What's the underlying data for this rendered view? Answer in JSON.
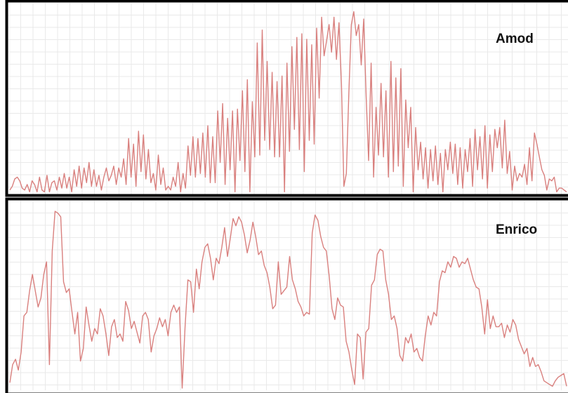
{
  "colors": {
    "line": "#d9807e",
    "grid": "#e9e9e9",
    "frame": "#000000",
    "background": "#ffffff"
  },
  "chart_data": [
    {
      "type": "line",
      "name": "Amod",
      "grid": true,
      "ylim": [
        0,
        100
      ],
      "values": [
        2,
        4,
        8,
        9,
        7,
        3,
        2,
        5,
        1,
        7,
        5,
        1,
        9,
        2,
        1,
        10,
        1,
        6,
        7,
        2,
        9,
        3,
        11,
        3,
        9,
        1,
        13,
        4,
        15,
        3,
        14,
        6,
        17,
        4,
        13,
        4,
        10,
        2,
        9,
        14,
        7,
        10,
        15,
        5,
        14,
        9,
        19,
        5,
        30,
        9,
        27,
        4,
        34,
        12,
        32,
        8,
        24,
        6,
        11,
        2,
        21,
        5,
        14,
        2,
        4,
        2,
        9,
        4,
        17,
        1,
        11,
        3,
        26,
        10,
        31,
        9,
        30,
        11,
        33,
        9,
        37,
        6,
        31,
        6,
        45,
        17,
        49,
        5,
        41,
        13,
        45,
        1,
        46,
        18,
        56,
        12,
        62,
        1,
        50,
        20,
        82,
        21,
        89,
        29,
        72,
        24,
        66,
        20,
        61,
        20,
        64,
        1,
        71,
        23,
        80,
        35,
        85,
        24,
        87,
        12,
        84,
        29,
        81,
        27,
        90,
        52,
        96,
        75,
        83,
        92,
        77,
        96,
        73,
        93,
        60,
        4,
        11,
        54,
        92,
        99,
        86,
        92,
        70,
        95,
        53,
        18,
        71,
        9,
        47,
        21,
        60,
        20,
        56,
        9,
        72,
        12,
        63,
        15,
        68,
        4,
        51,
        25,
        47,
        1,
        36,
        13,
        28,
        8,
        25,
        3,
        24,
        7,
        26,
        5,
        22,
        1,
        24,
        13,
        28,
        11,
        27,
        5,
        25,
        3,
        24,
        12,
        30,
        4,
        35,
        13,
        31,
        8,
        37,
        3,
        32,
        12,
        35,
        25,
        36,
        14,
        40,
        11,
        23,
        2,
        15,
        7,
        11,
        9,
        16,
        5,
        25,
        7,
        33,
        27,
        20,
        13,
        10,
        2,
        8,
        7,
        9,
        1,
        3,
        3,
        2,
        1
      ]
    },
    {
      "type": "line",
      "name": "Enrico",
      "grid": true,
      "ylim": [
        0,
        100
      ],
      "values": [
        3,
        13,
        16,
        10,
        20,
        40,
        42,
        54,
        63,
        54,
        45,
        50,
        63,
        70,
        13,
        76,
        98,
        97,
        95,
        59,
        53,
        55,
        42,
        30,
        42,
        15,
        22,
        45,
        35,
        26,
        33,
        30,
        44,
        40,
        30,
        18,
        34,
        38,
        28,
        30,
        26,
        48,
        43,
        33,
        37,
        31,
        25,
        40,
        42,
        38,
        20,
        29,
        33,
        39,
        34,
        38,
        29,
        42,
        46,
        42,
        45,
        0,
        34,
        60,
        59,
        42,
        66,
        55,
        70,
        78,
        80,
        72,
        60,
        72,
        69,
        78,
        89,
        73,
        83,
        94,
        90,
        95,
        92,
        85,
        75,
        82,
        92,
        84,
        74,
        76,
        68,
        64,
        56,
        44,
        46,
        70,
        52,
        54,
        56,
        73,
        60,
        55,
        48,
        45,
        40,
        42,
        41,
        86,
        96,
        93,
        84,
        78,
        76,
        62,
        44,
        38,
        50,
        46,
        45,
        26,
        20,
        10,
        2,
        30,
        28,
        5,
        31,
        33,
        57,
        60,
        74,
        77,
        76,
        60,
        52,
        38,
        40,
        33,
        18,
        15,
        28,
        25,
        30,
        20,
        22,
        17,
        15,
        29,
        40,
        35,
        42,
        40,
        59,
        65,
        64,
        70,
        67,
        73,
        72,
        67,
        70,
        69,
        72,
        66,
        60,
        56,
        55,
        45,
        30,
        49,
        33,
        40,
        34,
        34,
        36,
        28,
        35,
        31,
        38,
        35,
        27,
        23,
        19,
        22,
        12,
        17,
        12,
        13,
        9,
        4,
        3,
        2,
        1,
        4,
        6,
        7,
        8,
        1
      ]
    }
  ]
}
